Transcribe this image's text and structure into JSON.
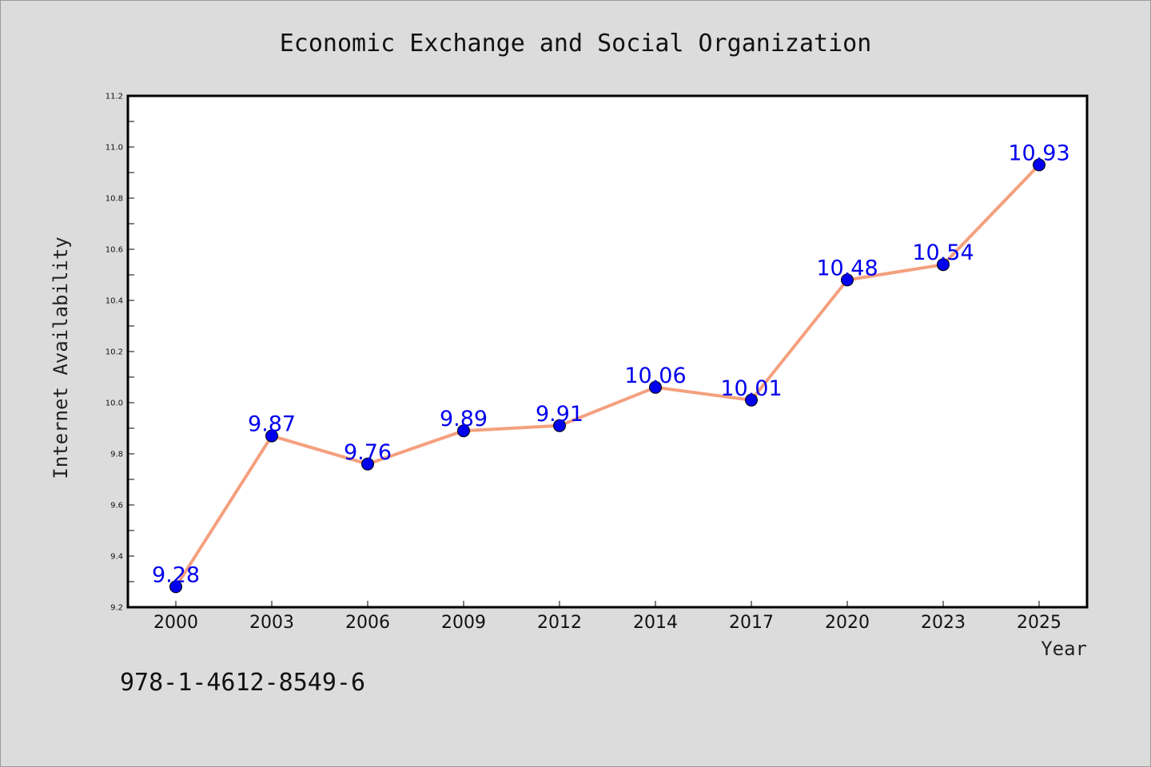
{
  "chart_data": {
    "type": "line",
    "title": "Economic Exchange and Social Organization",
    "xlabel": "Year",
    "ylabel": "Internet Availability",
    "categories": [
      "2000",
      "2003",
      "2006",
      "2009",
      "2012",
      "2014",
      "2017",
      "2020",
      "2023",
      "2025"
    ],
    "series": [
      {
        "values": [
          9.28,
          9.87,
          9.76,
          9.89,
          9.91,
          10.06,
          10.01,
          10.48,
          10.54,
          10.93
        ],
        "line_color": "#f4a07e",
        "marker_color": "#0000ee",
        "label_color": "#0000ee"
      }
    ],
    "ylim": [
      9.2,
      11.2
    ],
    "yticks": [
      "9.2",
      "9.4",
      "9.6",
      "9.8",
      "10.0",
      "10.2",
      "10.4",
      "10.6",
      "10.8",
      "11.0",
      "11.2"
    ],
    "grid": false,
    "legend": "none"
  },
  "annotation": "978-1-4612-8549-6",
  "colors": {
    "background": "#dcdcdc",
    "plot_background": "#ffffff",
    "axis": "#000000"
  }
}
